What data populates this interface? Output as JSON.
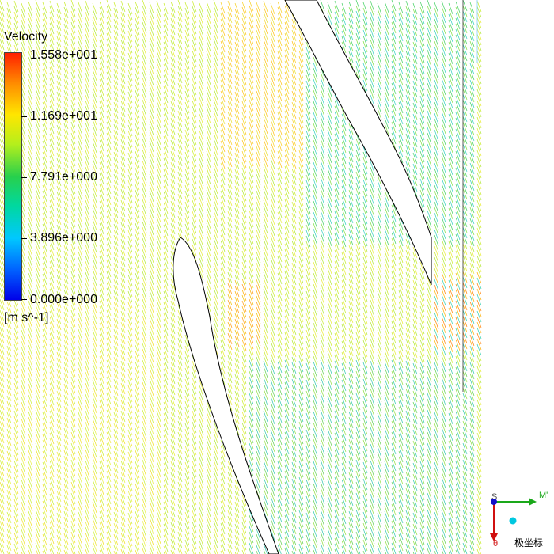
{
  "legend": {
    "title": "Velocity",
    "units": "[m s^-1]",
    "ticks": [
      "1.558e+001",
      "1.169e+001",
      "7.791e+000",
      "3.896e+000",
      "0.000e+000"
    ],
    "min": 0.0,
    "max": 15.58,
    "colors": [
      "#ff2000",
      "#ff8a00",
      "#ffe600",
      "#b4ef1c",
      "#28d04c",
      "#00d8a0",
      "#00c8ff",
      "#0060ff",
      "#0000e8"
    ]
  },
  "axes_triad": {
    "label_s": "S",
    "label_m": "M'",
    "label_theta": "θ",
    "system_label": "极坐标",
    "x_color": "#1aa81a",
    "y_color": "#d01010",
    "z_color": "#1010c8",
    "marker_color": "#00c8e0"
  },
  "icons": [
    "velocity-vector-field",
    "blade-geometry",
    "axes-triad-icon"
  ]
}
